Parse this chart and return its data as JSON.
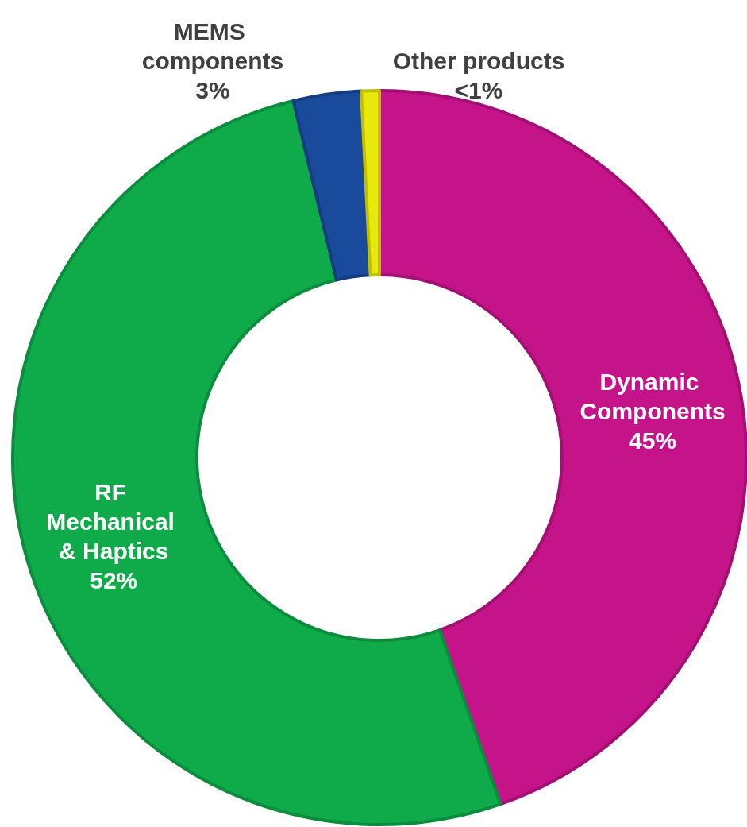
{
  "chart_data": {
    "type": "donut",
    "categories": [
      "Dynamic Components",
      "RF Mechanical & Haptics",
      "MEMS components",
      "Other products"
    ],
    "values": [
      45,
      52,
      3,
      0.8
    ],
    "value_labels": [
      "45%",
      "52%",
      "3%",
      "<1%"
    ],
    "colors": [
      "#c5148a",
      "#0fab4a",
      "#1a4a9c",
      "#e8e80a"
    ],
    "legend": false
  }
}
